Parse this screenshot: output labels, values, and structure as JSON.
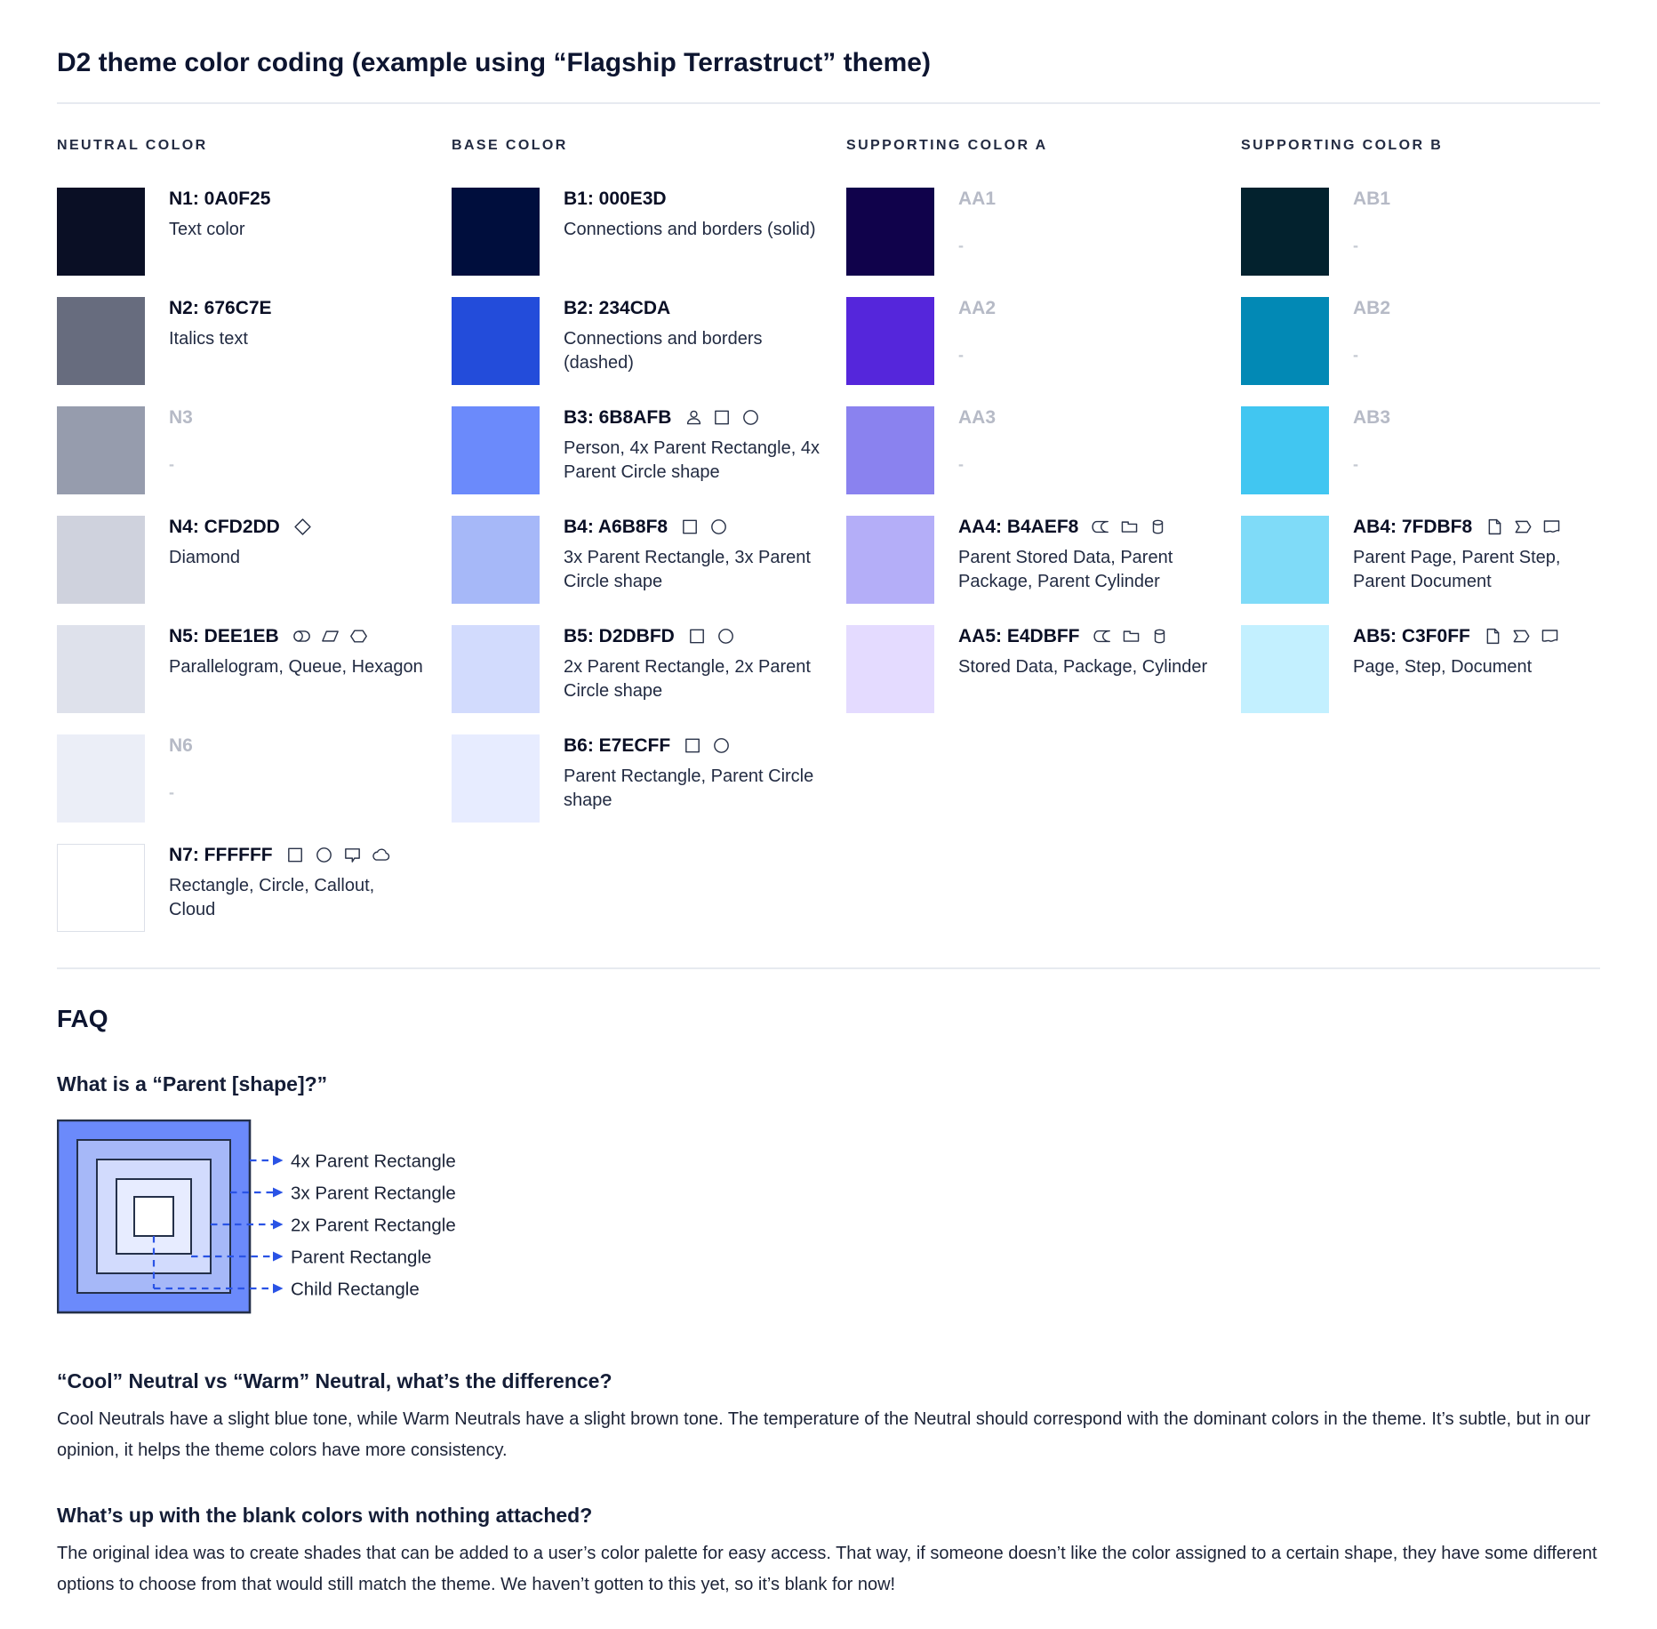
{
  "page": {
    "title": "D2 theme color coding (example using “Flagship Terrastruct” theme)"
  },
  "palette": {
    "columns": [
      {
        "header": "NEUTRAL COLOR",
        "rows": [
          {
            "code": "N1: 0A0F25",
            "swatch": "#0A0F25",
            "desc": "Text color"
          },
          {
            "code": "N2: 676C7E",
            "swatch": "#676C7E",
            "desc": "Italics text"
          },
          {
            "code": "N3",
            "swatch": "#969CAD",
            "desc": "-",
            "blank": true
          },
          {
            "code": "N4: CFD2DD",
            "swatch": "#CFD2DD",
            "desc": "Diamond",
            "icons": [
              "diamond"
            ]
          },
          {
            "code": "N5: DEE1EB",
            "swatch": "#DEE1EB",
            "desc": "Parallelogram, Queue, Hexagon",
            "icons": [
              "queue",
              "parallelogram",
              "hexagon"
            ]
          },
          {
            "code": "N6",
            "swatch": "#EBEEF7",
            "desc": "-",
            "blank": true
          },
          {
            "code": "N7: FFFFFF",
            "swatch": "#FFFFFF",
            "desc": "Rectangle, Circle, Callout, Cloud",
            "icons": [
              "rectangle",
              "circle",
              "callout",
              "cloud"
            ],
            "border": true
          }
        ]
      },
      {
        "header": "BASE COLOR",
        "rows": [
          {
            "code": "B1: 000E3D",
            "swatch": "#000E3D",
            "desc": "Connections and borders (solid)"
          },
          {
            "code": "B2: 234CDA",
            "swatch": "#234CDA",
            "desc": "Connections and borders (dashed)"
          },
          {
            "code": "B3: 6B8AFB",
            "swatch": "#6B8AFB",
            "desc": "Person, 4x Parent Rectangle, 4x Parent Circle shape",
            "icons": [
              "person",
              "rectangle",
              "circle"
            ]
          },
          {
            "code": "B4: A6B8F8",
            "swatch": "#A6B8F8",
            "desc": "3x Parent Rectangle, 3x Parent Circle shape",
            "icons": [
              "rectangle",
              "circle"
            ]
          },
          {
            "code": "B5: D2DBFD",
            "swatch": "#D2DBFD",
            "desc": "2x Parent Rectangle, 2x Parent Circle shape",
            "icons": [
              "rectangle",
              "circle"
            ]
          },
          {
            "code": "B6: E7ECFF",
            "swatch": "#E7ECFF",
            "desc": "Parent Rectangle, Parent Circle shape",
            "icons": [
              "rectangle",
              "circle"
            ]
          }
        ]
      },
      {
        "header": "SUPPORTING COLOR A",
        "rows": [
          {
            "code": "AA1",
            "swatch": "#10024B",
            "desc": "-",
            "blank": true
          },
          {
            "code": "AA2",
            "swatch": "#5526DB",
            "desc": "-",
            "blank": true
          },
          {
            "code": "AA3",
            "swatch": "#8A82EF",
            "desc": "-",
            "blank": true
          },
          {
            "code": "AA4: B4AEF8",
            "swatch": "#B4AEF8",
            "desc": "Parent Stored Data, Parent Package,  Parent Cylinder",
            "icons": [
              "stored-data",
              "package",
              "cylinder"
            ]
          },
          {
            "code": "AA5: E4DBFF",
            "swatch": "#E4DBFF",
            "desc": "Stored Data, Package, Cylinder",
            "icons": [
              "stored-data",
              "package",
              "cylinder"
            ]
          }
        ]
      },
      {
        "header": "SUPPORTING COLOR B",
        "rows": [
          {
            "code": "AB1",
            "swatch": "#03222E",
            "desc": "-",
            "blank": true
          },
          {
            "code": "AB2",
            "swatch": "#0289B5",
            "desc": "-",
            "blank": true
          },
          {
            "code": "AB3",
            "swatch": "#41C6F1",
            "desc": "-",
            "blank": true
          },
          {
            "code": "AB4: 7FDBF8",
            "swatch": "#7FDBF8",
            "desc": "Parent Page, Parent Step, Parent Document",
            "icons": [
              "page",
              "step",
              "document"
            ]
          },
          {
            "code": "AB5: C3F0FF",
            "swatch": "#C3F0FF",
            "desc": "Page, Step, Document",
            "icons": [
              "page",
              "step",
              "document"
            ]
          }
        ]
      }
    ]
  },
  "faq": {
    "heading": "FAQ",
    "q_parent": "What is a “Parent [shape]?”",
    "diagram": {
      "labels": [
        "4x Parent Rectangle",
        "3x Parent Rectangle",
        "2x Parent Rectangle",
        "Parent Rectangle",
        "Child Rectangle"
      ],
      "fills": [
        "#6B8AFB",
        "#A6B8F8",
        "#D2DBFD",
        "#E7ECFF",
        "#FFFFFF"
      ],
      "stroke": "#243049",
      "dash_color": "#2A53E5"
    },
    "q_cool_warm": "“Cool” Neutral vs “Warm” Neutral, what’s the difference?",
    "a_cool_warm": "Cool Neutrals have a slight blue tone, while Warm Neutrals have a slight brown tone. The temperature of the Neutral should correspond with the dominant colors in the theme. It’s subtle, but in our opinion, it helps the theme colors have more consistency.",
    "q_blank": "What’s up with the blank colors with nothing attached?",
    "a_blank": "The original idea was to create shades that can be added to a user’s color palette for easy access. That way, if someone doesn’t like the color assigned to a certain shape, they have some different options to choose from that would still match the theme. We haven’t gotten to this yet, so it’s blank for now!"
  }
}
